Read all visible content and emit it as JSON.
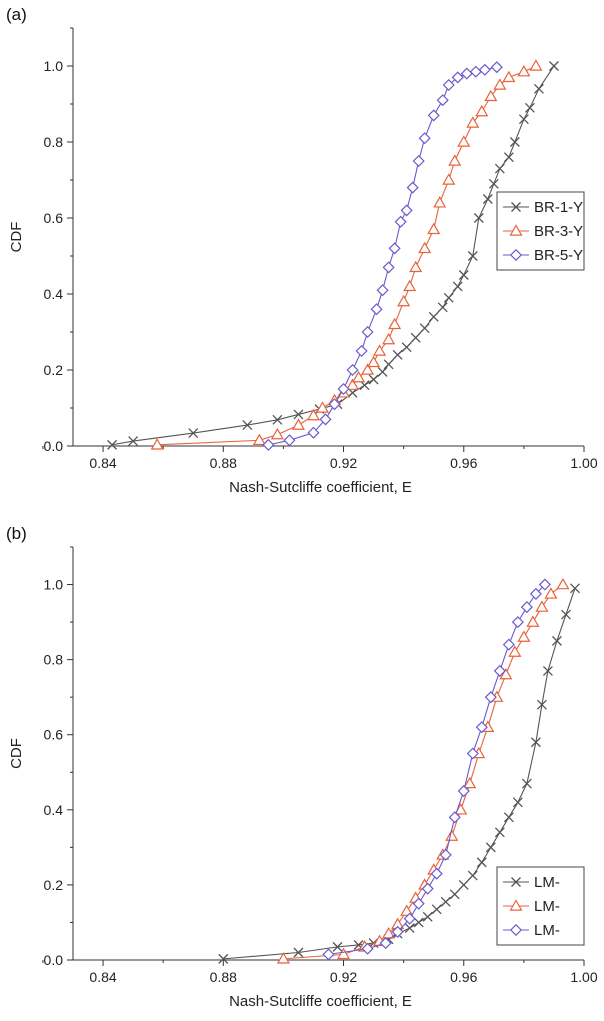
{
  "chart_data": [
    {
      "type": "line",
      "panel_label": "(a)",
      "xlabel": "Nash-Sutcliffe coefficient, E",
      "ylabel": "CDF",
      "xlim": [
        0.83,
        1.0
      ],
      "ylim": [
        0.0,
        1.1
      ],
      "xticks": [
        0.84,
        0.88,
        0.92,
        0.96,
        1.0
      ],
      "xtick_labels": [
        "0.84",
        "0.88",
        "0.92",
        "0.96",
        "1.00"
      ],
      "yticks": [
        0.0,
        0.2,
        0.4,
        0.6,
        0.8,
        1.0
      ],
      "ytick_labels": [
        "0.0",
        "0.2",
        "0.4",
        "0.6",
        "0.8",
        "1.0"
      ],
      "grid": false,
      "legend_position": "center-right",
      "series": [
        {
          "name": "BR-1-Y",
          "marker": "x",
          "color": "#555555",
          "x": [
            0.843,
            0.85,
            0.87,
            0.888,
            0.898,
            0.905,
            0.912,
            0.918,
            0.923,
            0.927,
            0.93,
            0.933,
            0.935,
            0.938,
            0.941,
            0.944,
            0.947,
            0.95,
            0.953,
            0.955,
            0.958,
            0.96,
            0.963,
            0.965,
            0.968,
            0.97,
            0.972,
            0.975,
            0.977,
            0.98,
            0.982,
            0.985,
            0.99
          ],
          "y": [
            0.003,
            0.013,
            0.034,
            0.055,
            0.069,
            0.083,
            0.097,
            0.11,
            0.14,
            0.16,
            0.175,
            0.195,
            0.215,
            0.24,
            0.26,
            0.285,
            0.31,
            0.34,
            0.365,
            0.39,
            0.42,
            0.45,
            0.5,
            0.6,
            0.65,
            0.69,
            0.73,
            0.76,
            0.8,
            0.86,
            0.89,
            0.94,
            1.0
          ]
        },
        {
          "name": "BR-3-Y",
          "marker": "triangle",
          "color": "#e8623a",
          "x": [
            0.858,
            0.892,
            0.898,
            0.905,
            0.91,
            0.913,
            0.917,
            0.92,
            0.923,
            0.925,
            0.928,
            0.93,
            0.932,
            0.935,
            0.937,
            0.94,
            0.942,
            0.944,
            0.947,
            0.95,
            0.952,
            0.955,
            0.957,
            0.96,
            0.963,
            0.966,
            0.969,
            0.972,
            0.975,
            0.98,
            0.984
          ],
          "y": [
            0.003,
            0.015,
            0.03,
            0.055,
            0.08,
            0.1,
            0.12,
            0.14,
            0.16,
            0.18,
            0.2,
            0.22,
            0.25,
            0.28,
            0.32,
            0.38,
            0.42,
            0.47,
            0.52,
            0.57,
            0.64,
            0.7,
            0.75,
            0.8,
            0.85,
            0.88,
            0.92,
            0.95,
            0.97,
            0.985,
            1.0
          ]
        },
        {
          "name": "BR-5-Y",
          "marker": "diamond",
          "color": "#6a5acd",
          "x": [
            0.895,
            0.902,
            0.91,
            0.914,
            0.917,
            0.92,
            0.923,
            0.926,
            0.928,
            0.931,
            0.933,
            0.935,
            0.937,
            0.939,
            0.941,
            0.943,
            0.945,
            0.947,
            0.95,
            0.953,
            0.955,
            0.958,
            0.961,
            0.964,
            0.967,
            0.971
          ],
          "y": [
            0.003,
            0.015,
            0.035,
            0.07,
            0.11,
            0.15,
            0.2,
            0.25,
            0.3,
            0.36,
            0.41,
            0.47,
            0.52,
            0.59,
            0.62,
            0.68,
            0.75,
            0.81,
            0.87,
            0.91,
            0.95,
            0.97,
            0.98,
            0.985,
            0.99,
            0.997
          ]
        }
      ]
    },
    {
      "type": "line",
      "panel_label": "(b)",
      "xlabel": "Nash-Sutcliffe coefficient, E",
      "ylabel": "CDF",
      "xlim": [
        0.83,
        1.0
      ],
      "ylim": [
        0.0,
        1.1
      ],
      "xticks": [
        0.84,
        0.88,
        0.92,
        0.96,
        1.0
      ],
      "xtick_labels": [
        "0.84",
        "0.88",
        "0.92",
        "0.96",
        "1.00"
      ],
      "yticks": [
        0.0,
        0.2,
        0.4,
        0.6,
        0.8,
        1.0
      ],
      "ytick_labels": [
        "0.0",
        "0.2",
        "0.4",
        "0.6",
        "0.8",
        "1.0"
      ],
      "grid": false,
      "legend_position": "bottom-right",
      "series": [
        {
          "name": "LM-",
          "marker": "x",
          "color": "#555555",
          "x": [
            0.88,
            0.905,
            0.918,
            0.925,
            0.93,
            0.935,
            0.938,
            0.942,
            0.945,
            0.948,
            0.951,
            0.954,
            0.957,
            0.96,
            0.963,
            0.966,
            0.969,
            0.972,
            0.975,
            0.978,
            0.981,
            0.984,
            0.986,
            0.988,
            0.991,
            0.994,
            0.997
          ],
          "y": [
            0.003,
            0.02,
            0.035,
            0.04,
            0.045,
            0.055,
            0.07,
            0.085,
            0.1,
            0.115,
            0.135,
            0.155,
            0.175,
            0.2,
            0.225,
            0.26,
            0.3,
            0.34,
            0.38,
            0.42,
            0.47,
            0.58,
            0.68,
            0.77,
            0.85,
            0.92,
            0.99
          ]
        },
        {
          "name": "LM-",
          "marker": "triangle",
          "color": "#e8623a",
          "x": [
            0.9,
            0.92,
            0.927,
            0.932,
            0.935,
            0.938,
            0.941,
            0.944,
            0.947,
            0.95,
            0.953,
            0.956,
            0.959,
            0.962,
            0.965,
            0.968,
            0.971,
            0.974,
            0.977,
            0.98,
            0.983,
            0.986,
            0.989,
            0.993
          ],
          "y": [
            0.003,
            0.015,
            0.035,
            0.05,
            0.07,
            0.095,
            0.13,
            0.165,
            0.2,
            0.24,
            0.28,
            0.33,
            0.4,
            0.47,
            0.55,
            0.62,
            0.7,
            0.76,
            0.82,
            0.86,
            0.9,
            0.94,
            0.975,
            1.0
          ]
        },
        {
          "name": "LM-",
          "marker": "diamond",
          "color": "#6a5acd",
          "x": [
            0.915,
            0.928,
            0.934,
            0.938,
            0.942,
            0.945,
            0.948,
            0.951,
            0.954,
            0.957,
            0.96,
            0.963,
            0.966,
            0.969,
            0.972,
            0.975,
            0.978,
            0.981,
            0.984,
            0.987
          ],
          "y": [
            0.015,
            0.03,
            0.045,
            0.075,
            0.11,
            0.15,
            0.19,
            0.23,
            0.28,
            0.38,
            0.45,
            0.55,
            0.62,
            0.7,
            0.77,
            0.84,
            0.9,
            0.94,
            0.975,
            1.0
          ]
        }
      ]
    }
  ]
}
